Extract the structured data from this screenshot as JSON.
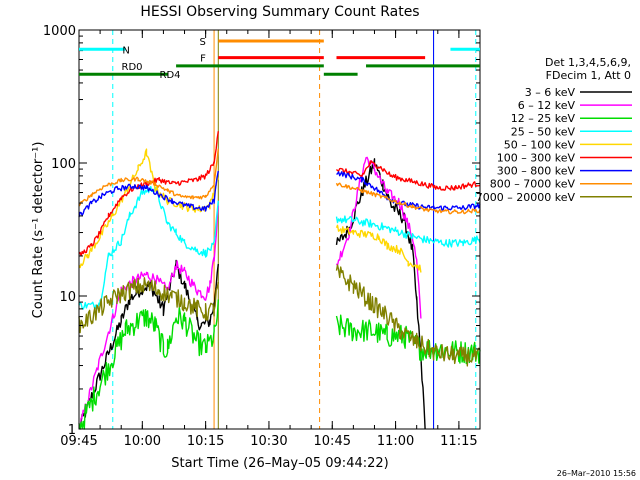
{
  "chart_data": {
    "type": "line",
    "title": "HESSI Observing Summary Count Rates",
    "xlabel": "Start Time (26–May–05 09:44:22)",
    "ylabel": "Count Rate (s⁻¹ detector⁻¹)",
    "x_range": [
      "09:45",
      "11:20"
    ],
    "x_ticks": [
      "09:45",
      "10:00",
      "10:15",
      "10:30",
      "10:45",
      "11:00",
      "11:15"
    ],
    "y_scale": "log",
    "ylim": [
      1,
      1000
    ],
    "y_ticks": [
      "1",
      "10",
      "100",
      "1000"
    ],
    "legend_header": [
      "Det 1,3,4,5,6,9,",
      "FDecim 1, Att 0"
    ],
    "legend_position": "right",
    "timestamp": "26–Mar–2010 15:56",
    "gap": [
      "10:43",
      "10:46"
    ],
    "series": [
      {
        "name": "3 – 6 keV",
        "color": "#000000",
        "noise": 0.05,
        "points": [
          [
            "09:45",
            1.0
          ],
          [
            "09:55",
            6.5
          ],
          [
            "09:57",
            9.5
          ],
          [
            "10:00",
            11.5
          ],
          [
            "10:02",
            12.0
          ],
          [
            "10:04",
            9.0
          ],
          [
            "10:05",
            8.0
          ],
          [
            "10:08",
            17.0
          ],
          [
            "10:10",
            12.0
          ],
          [
            "10:13",
            6.5
          ],
          [
            "10:14",
            6.0
          ],
          [
            "10:16",
            6.5
          ],
          [
            "10:17",
            8.5
          ],
          [
            "10:18",
            19.0
          ],
          [
            "10:46",
            24.0
          ],
          [
            "10:49",
            32.0
          ],
          [
            "10:52",
            60.0
          ],
          [
            "10:55",
            100.0
          ],
          [
            "10:57",
            70.0
          ],
          [
            "10:59",
            48.0
          ],
          [
            "11:02",
            38.0
          ],
          [
            "11:04",
            22.0
          ],
          [
            "11:05",
            9.0
          ],
          [
            "11:06",
            3.5
          ],
          [
            "11:07",
            1.0
          ]
        ]
      },
      {
        "name": "6 – 12 keV",
        "color": "#ff00ff",
        "noise": 0.04,
        "points": [
          [
            "09:45",
            1.0
          ],
          [
            "09:55",
            11.0
          ],
          [
            "09:58",
            13.0
          ],
          [
            "10:01",
            14.5
          ],
          [
            "10:03",
            13.5
          ],
          [
            "10:06",
            11.0
          ],
          [
            "10:08",
            17.0
          ],
          [
            "10:10",
            15.0
          ],
          [
            "10:13",
            11.0
          ],
          [
            "10:15",
            10.0
          ],
          [
            "10:16",
            12.0
          ],
          [
            "10:17",
            20.0
          ],
          [
            "10:18",
            45.0
          ],
          [
            "10:46",
            17.0
          ],
          [
            "10:49",
            30.0
          ],
          [
            "10:51",
            60.0
          ],
          [
            "10:53",
            110.0
          ],
          [
            "10:55",
            90.0
          ],
          [
            "10:58",
            60.0
          ],
          [
            "11:01",
            50.0
          ],
          [
            "11:04",
            28.0
          ],
          [
            "11:05",
            18.0
          ],
          [
            "11:06",
            7.0
          ]
        ]
      },
      {
        "name": "12 – 25 keV",
        "color": "#00dd00",
        "noise": 0.09,
        "points": [
          [
            "09:45",
            1.0
          ],
          [
            "09:56",
            5.5
          ],
          [
            "09:59",
            6.5
          ],
          [
            "10:01",
            7.0
          ],
          [
            "10:03",
            6.0
          ],
          [
            "10:05",
            4.0
          ],
          [
            "10:06",
            4.0
          ],
          [
            "10:08",
            7.0
          ],
          [
            "10:10",
            6.5
          ],
          [
            "10:13",
            4.5
          ],
          [
            "10:15",
            4.0
          ],
          [
            "10:17",
            5.0
          ],
          [
            "10:18",
            8.0
          ],
          [
            "10:46",
            6.0
          ],
          [
            "10:50",
            5.5
          ],
          [
            "10:54",
            5.5
          ],
          [
            "10:58",
            5.0
          ],
          [
            "11:02",
            5.0
          ],
          [
            "11:06",
            4.0
          ],
          [
            "11:10",
            4.0
          ],
          [
            "11:15",
            3.8
          ],
          [
            "11:20",
            3.8
          ]
        ]
      },
      {
        "name": "25 – 50 keV",
        "color": "#00ffff",
        "noise": 0.03,
        "points": [
          [
            "09:45",
            8.5
          ],
          [
            "09:49",
            8.5
          ],
          [
            "09:50",
            9.0
          ],
          [
            "09:52",
            20.0
          ],
          [
            "09:55",
            26.0
          ],
          [
            "09:57",
            40.0
          ],
          [
            "10:00",
            60.0
          ],
          [
            "10:03",
            65.0
          ],
          [
            "10:06",
            35.0
          ],
          [
            "10:08",
            30.0
          ],
          [
            "10:10",
            25.0
          ],
          [
            "10:13",
            22.0
          ],
          [
            "10:15",
            21.0
          ],
          [
            "10:17",
            24.0
          ],
          [
            "10:18",
            50.0
          ],
          [
            "10:46",
            38.0
          ],
          [
            "10:50",
            37.0
          ],
          [
            "10:54",
            35.0
          ],
          [
            "10:57",
            33.0
          ],
          [
            "11:00",
            31.0
          ],
          [
            "11:04",
            28.0
          ],
          [
            "11:08",
            26.0
          ],
          [
            "11:12",
            25.0
          ],
          [
            "11:16",
            25.0
          ],
          [
            "11:20",
            27.0
          ]
        ]
      },
      {
        "name": "50 – 100 keV",
        "color": "#ffd700",
        "noise": 0.03,
        "points": [
          [
            "09:45",
            17.0
          ],
          [
            "09:47",
            20.0
          ],
          [
            "09:50",
            28.0
          ],
          [
            "09:53",
            40.0
          ],
          [
            "09:56",
            60.0
          ],
          [
            "09:59",
            90.0
          ],
          [
            "10:01",
            120.0
          ],
          [
            "10:03",
            65.0
          ],
          [
            "10:06",
            52.0
          ],
          [
            "10:08",
            50.0
          ],
          [
            "10:11",
            46.0
          ],
          [
            "10:14",
            45.0
          ],
          [
            "10:16",
            48.0
          ],
          [
            "10:18",
            80.0
          ],
          [
            "10:46",
            32.0
          ],
          [
            "10:50",
            30.0
          ],
          [
            "10:53",
            29.0
          ],
          [
            "10:56",
            28.0
          ],
          [
            "10:58",
            24.0
          ],
          [
            "11:01",
            22.0
          ],
          [
            "11:03",
            18.0
          ],
          [
            "11:05",
            17.0
          ],
          [
            "11:06",
            16.0
          ]
        ]
      },
      {
        "name": "100 – 300 keV",
        "color": "#ff0000",
        "noise": 0.02,
        "points": [
          [
            "09:45",
            20.0
          ],
          [
            "09:48",
            24.0
          ],
          [
            "09:50",
            30.0
          ],
          [
            "09:52",
            40.0
          ],
          [
            "09:55",
            55.0
          ],
          [
            "09:58",
            65.0
          ],
          [
            "10:01",
            70.0
          ],
          [
            "10:04",
            75.0
          ],
          [
            "10:07",
            70.0
          ],
          [
            "10:10",
            72.0
          ],
          [
            "10:13",
            75.0
          ],
          [
            "10:15",
            80.0
          ],
          [
            "10:17",
            100.0
          ],
          [
            "10:18",
            180.0
          ],
          [
            "10:46",
            90.0
          ],
          [
            "10:49",
            85.0
          ],
          [
            "10:52",
            80.0
          ],
          [
            "10:54",
            100.0
          ],
          [
            "10:56",
            95.0
          ],
          [
            "10:59",
            80.0
          ],
          [
            "11:02",
            75.0
          ],
          [
            "11:06",
            70.0
          ],
          [
            "11:10",
            65.0
          ],
          [
            "11:14",
            65.0
          ],
          [
            "11:17",
            68.0
          ],
          [
            "11:20",
            70.0
          ]
        ]
      },
      {
        "name": "300 – 800 keV",
        "color": "#0000ff",
        "noise": 0.02,
        "points": [
          [
            "09:45",
            40.0
          ],
          [
            "09:48",
            50.0
          ],
          [
            "09:51",
            58.0
          ],
          [
            "09:54",
            64.0
          ],
          [
            "09:58",
            67.0
          ],
          [
            "10:01",
            65.0
          ],
          [
            "10:04",
            58.0
          ],
          [
            "10:07",
            52.0
          ],
          [
            "10:10",
            48.0
          ],
          [
            "10:13",
            46.0
          ],
          [
            "10:15",
            45.0
          ],
          [
            "10:17",
            52.0
          ],
          [
            "10:18",
            90.0
          ],
          [
            "10:46",
            85.0
          ],
          [
            "10:49",
            80.0
          ],
          [
            "10:52",
            75.0
          ],
          [
            "10:55",
            65.0
          ],
          [
            "10:58",
            55.0
          ],
          [
            "11:01",
            50.0
          ],
          [
            "11:04",
            48.0
          ],
          [
            "11:08",
            46.0
          ],
          [
            "11:12",
            46.0
          ],
          [
            "11:16",
            46.0
          ],
          [
            "11:20",
            48.0
          ]
        ]
      },
      {
        "name": "800 – 7000 keV",
        "color": "#ff8c00",
        "noise": 0.015,
        "points": [
          [
            "09:45",
            48.0
          ],
          [
            "09:48",
            58.0
          ],
          [
            "09:51",
            67.0
          ],
          [
            "09:55",
            74.0
          ],
          [
            "09:59",
            76.0
          ],
          [
            "10:03",
            70.0
          ],
          [
            "10:06",
            62.0
          ],
          [
            "10:09",
            56.0
          ],
          [
            "10:12",
            55.0
          ],
          [
            "10:15",
            56.0
          ],
          [
            "10:17",
            70.0
          ],
          [
            "10:18",
            130.0
          ],
          [
            "10:46",
            70.0
          ],
          [
            "10:49",
            66.0
          ],
          [
            "10:52",
            62.0
          ],
          [
            "10:55",
            58.0
          ],
          [
            "10:58",
            54.0
          ],
          [
            "11:01",
            50.0
          ],
          [
            "11:04",
            47.0
          ],
          [
            "11:08",
            44.0
          ],
          [
            "11:12",
            43.0
          ],
          [
            "11:16",
            43.0
          ],
          [
            "11:20",
            44.0
          ]
        ]
      },
      {
        "name": "7000 – 20000 keV",
        "color": "#808000",
        "noise": 0.07,
        "points": [
          [
            "09:45",
            6.0
          ],
          [
            "09:48",
            7.0
          ],
          [
            "09:51",
            8.5
          ],
          [
            "09:54",
            10.0
          ],
          [
            "09:58",
            11.5
          ],
          [
            "10:01",
            12.0
          ],
          [
            "10:04",
            11.0
          ],
          [
            "10:07",
            10.0
          ],
          [
            "10:10",
            9.0
          ],
          [
            "10:13",
            8.0
          ],
          [
            "10:15",
            7.5
          ],
          [
            "10:17",
            8.0
          ],
          [
            "10:18",
            12.0
          ],
          [
            "10:46",
            15.0
          ],
          [
            "10:50",
            12.0
          ],
          [
            "10:54",
            9.0
          ],
          [
            "10:58",
            7.0
          ],
          [
            "11:01",
            5.5
          ],
          [
            "11:05",
            4.5
          ],
          [
            "11:09",
            3.8
          ],
          [
            "11:13",
            3.6
          ],
          [
            "11:17",
            3.5
          ],
          [
            "11:20",
            3.5
          ]
        ]
      }
    ],
    "flags": [
      {
        "label": "N",
        "color": "#00ffff",
        "y_row": 1,
        "label_at": "09:58",
        "segments": [
          [
            "09:45",
            "09:56"
          ],
          [
            "11:13",
            "11:20"
          ]
        ]
      },
      {
        "label": "S",
        "color": "#ff8c00",
        "y_row": 0,
        "label_at": "10:16",
        "segments": [
          [
            "10:18",
            "10:43"
          ]
        ]
      },
      {
        "label": "F",
        "color": "#ff0000",
        "y_row": 2,
        "label_at": "10:16",
        "segments": [
          [
            "10:18",
            "10:43"
          ],
          [
            "10:46",
            "11:07"
          ]
        ]
      },
      {
        "label": "RD0",
        "color": "#008000",
        "y_row": 3,
        "label_at": "10:01",
        "segments": [
          [
            "10:08",
            "10:43"
          ],
          [
            "10:53",
            "11:20"
          ]
        ]
      },
      {
        "label": "RD4",
        "color": "#008000",
        "y_row": 4,
        "label_at": "10:10",
        "segments": [
          [
            "09:45",
            "10:06"
          ],
          [
            "10:43",
            "10:51"
          ]
        ]
      }
    ],
    "vertical_markers": [
      {
        "time": "09:45",
        "color": "#00ffff",
        "style": "solid"
      },
      {
        "time": "09:53",
        "color": "#00ffff",
        "style": "dashed"
      },
      {
        "time": "10:17",
        "color": "#ff8c00",
        "style": "solid"
      },
      {
        "time": "10:18",
        "color": "#808000",
        "style": "solid"
      },
      {
        "time": "10:42",
        "color": "#ff8c00",
        "style": "dashed"
      },
      {
        "time": "11:09",
        "color": "#00ffff",
        "style": "solid"
      },
      {
        "time": "11:09",
        "color": "#0000ff",
        "style": "solid"
      },
      {
        "time": "11:19",
        "color": "#00ffff",
        "style": "dashed"
      }
    ]
  }
}
